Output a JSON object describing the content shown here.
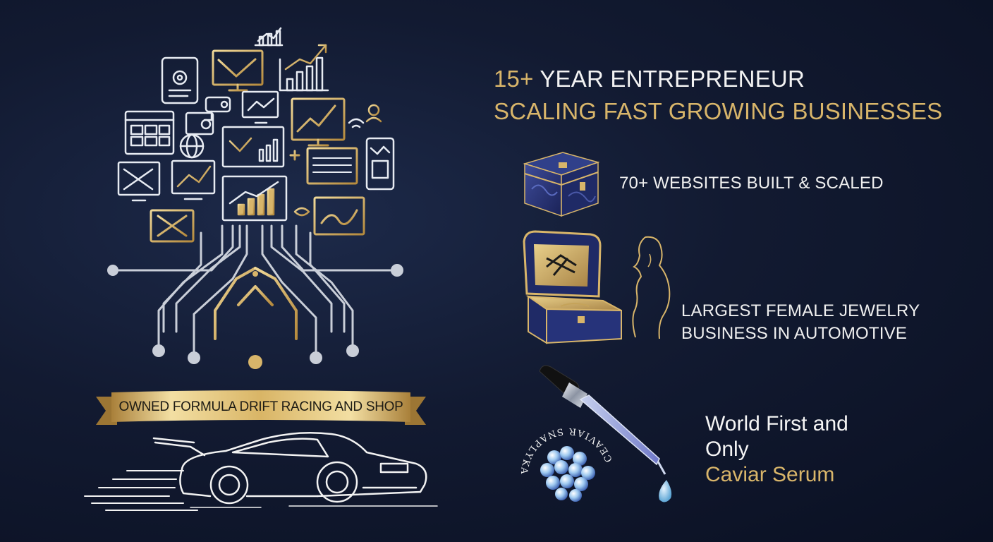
{
  "headline": {
    "line1_accent": "15+",
    "line1_rest": " YEAR ENTREPRENEUR",
    "line2": "SCALING FAST GROWING BUSINESSES"
  },
  "features": [
    {
      "text": "70+ WEBSITES BUILT & SCALED",
      "icon": "jewelry-box-icon"
    },
    {
      "lines": [
        "LARGEST FEMALE JEWELRY",
        "BUSINESS IN AUTOMOTIVE"
      ],
      "icon": "open-ring-box-icon"
    },
    {
      "lines": [
        "World First and",
        "Only"
      ],
      "highlight": "Caviar Serum",
      "icon": "serum-dropper-icon"
    }
  ],
  "banner": {
    "text": "OWNED FORMULA DRIFT RACING AND SHOP"
  },
  "caviar_logo": {
    "ring_text": "CEAVIAR SNAPLYKA"
  },
  "colors": {
    "background": "#121a31",
    "gold": "#d8b56a",
    "silver": "#c9ced8",
    "navy_box": "#24306b"
  }
}
